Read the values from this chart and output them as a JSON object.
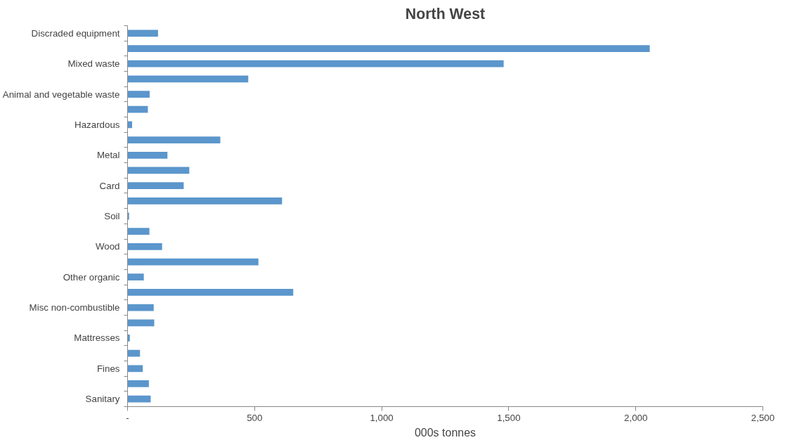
{
  "chart_data": {
    "type": "bar",
    "orientation": "horizontal",
    "title": "North West",
    "xlabel": "000s tonnes",
    "categories": [
      "Discraded equipment",
      null,
      "Mixed waste",
      null,
      "Animal and vegetable waste",
      null,
      "Hazardous",
      null,
      "Metal",
      null,
      "Card",
      null,
      "Soil",
      null,
      "Wood",
      null,
      "Other organic",
      null,
      "Misc non-combustible",
      null,
      "Mattresses",
      null,
      "Fines",
      null,
      "Sanitary"
    ],
    "values": [
      120,
      2055,
      1480,
      475,
      87,
      80,
      18,
      365,
      157,
      243,
      221,
      608,
      6,
      86,
      136,
      515,
      64,
      652,
      103,
      105,
      9,
      49,
      60,
      84,
      91
    ],
    "color": "#5b96cc",
    "xlim": [
      0,
      2500
    ],
    "xticks": [
      {
        "value": 0,
        "label": "-"
      },
      {
        "value": 500,
        "label": "500"
      },
      {
        "value": 1000,
        "label": "1,000"
      },
      {
        "value": 1500,
        "label": "1,500"
      },
      {
        "value": 2000,
        "label": "2,000"
      },
      {
        "value": 2500,
        "label": "2,500"
      }
    ],
    "grid": false
  }
}
